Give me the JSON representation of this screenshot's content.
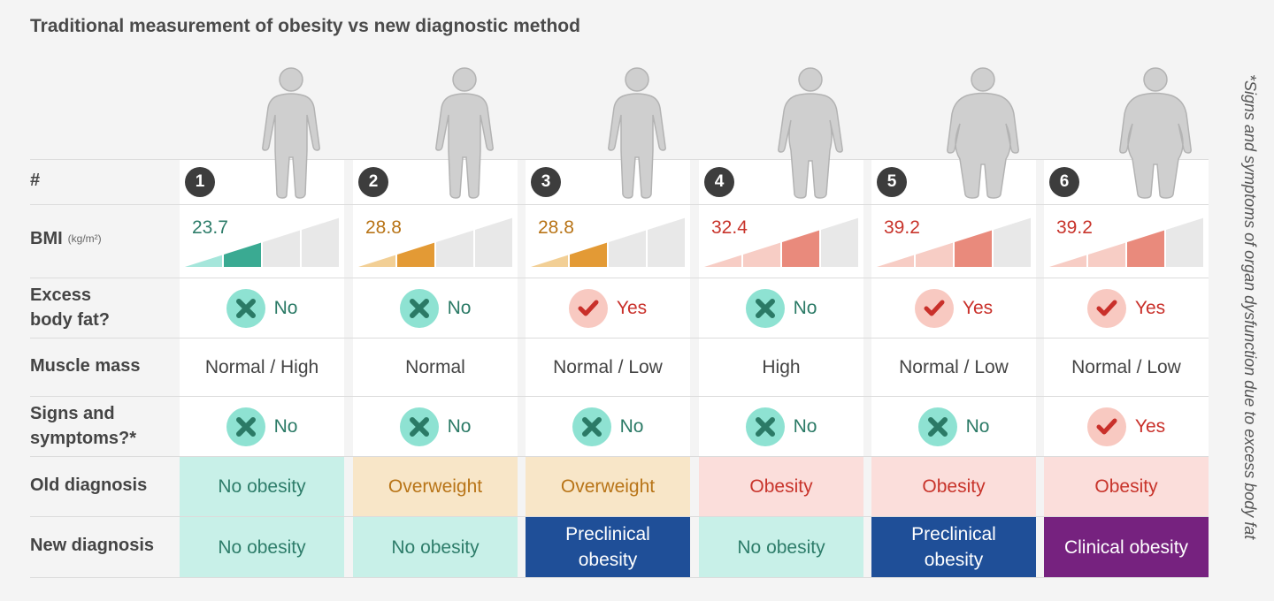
{
  "title": "Traditional measurement of obesity vs new diagnostic method",
  "side_note": "*Signs and symptoms of organ dysfunction due to excess body fat",
  "row_labels": {
    "number": "#",
    "bmi": "BMI",
    "bmi_unit": "(kg/m²)",
    "excess_fat_line1": "Excess",
    "excess_fat_line2": "body fat?",
    "muscle_mass": "Muscle mass",
    "signs_line1": "Signs and",
    "signs_line2": "symptoms?*",
    "old_diagnosis": "Old diagnosis",
    "new_diagnosis": "New diagnosis"
  },
  "colors": {
    "teal_dark": "#3aaa92",
    "teal_light": "#a5e6db",
    "teal_bg": "#c8f0e8",
    "teal_text": "#2e7d6a",
    "orange_dark": "#e39a35",
    "orange_light": "#f2cf95",
    "orange_bg": "#f8e6c8",
    "orange_text": "#b87417",
    "red_dark": "#e98a7c",
    "red_light": "#f7cdc5",
    "red_bg": "#fbdedb",
    "red_text": "#c8342b",
    "navy": "#1f4f98",
    "purple": "#76227f",
    "gray_seg": "#e8e8e8",
    "x_circle": "#8ee2d2",
    "x_mark": "#2b7a66",
    "check_circle": "#f8c9c1",
    "check_mark": "#c9302a"
  },
  "chart_data": {
    "type": "table",
    "title": "Traditional measurement of obesity vs new diagnostic method",
    "columns": [
      "1",
      "2",
      "3",
      "4",
      "5",
      "6"
    ],
    "people": [
      {
        "number": "1",
        "bmi": 23.7,
        "bmi_text": "23.7",
        "bmi_level": 2,
        "bmi_color": "teal",
        "body": "slim",
        "excess_fat": "No",
        "muscle_mass": "Normal / High",
        "signs": "No",
        "old_diagnosis": "No obesity",
        "old_style": "teal",
        "new_diagnosis": "No obesity",
        "new_style": "teal"
      },
      {
        "number": "2",
        "bmi": 28.8,
        "bmi_text": "28.8",
        "bmi_level": 2,
        "bmi_color": "orange",
        "body": "slim",
        "excess_fat": "No",
        "muscle_mass": "Normal",
        "signs": "No",
        "old_diagnosis": "Overweight",
        "old_style": "orange",
        "new_diagnosis": "No obesity",
        "new_style": "teal"
      },
      {
        "number": "3",
        "bmi": 28.8,
        "bmi_text": "28.8",
        "bmi_level": 2,
        "bmi_color": "orange",
        "body": "slim",
        "excess_fat": "Yes",
        "muscle_mass": "Normal / Low",
        "signs": "No",
        "old_diagnosis": "Overweight",
        "old_style": "orange",
        "new_diagnosis": "Preclinical obesity",
        "new_line1": "Preclinical",
        "new_line2": "obesity",
        "new_style": "navy"
      },
      {
        "number": "4",
        "bmi": 32.4,
        "bmi_text": "32.4",
        "bmi_level": 3,
        "bmi_color": "red",
        "body": "medium",
        "excess_fat": "No",
        "muscle_mass": "High",
        "signs": "No",
        "old_diagnosis": "Obesity",
        "old_style": "red",
        "new_diagnosis": "No obesity",
        "new_style": "teal"
      },
      {
        "number": "5",
        "bmi": 39.2,
        "bmi_text": "39.2",
        "bmi_level": 3,
        "bmi_color": "red",
        "body": "large",
        "excess_fat": "Yes",
        "muscle_mass": "Normal / Low",
        "signs": "No",
        "old_diagnosis": "Obesity",
        "old_style": "red",
        "new_diagnosis": "Preclinical obesity",
        "new_line1": "Preclinical",
        "new_line2": "obesity",
        "new_style": "navy"
      },
      {
        "number": "6",
        "bmi": 39.2,
        "bmi_text": "39.2",
        "bmi_level": 3,
        "bmi_color": "red",
        "body": "large",
        "excess_fat": "Yes",
        "muscle_mass": "Normal / Low",
        "signs": "Yes",
        "old_diagnosis": "Obesity",
        "old_style": "red",
        "new_diagnosis": "Clinical obesity",
        "new_style": "purple"
      }
    ]
  }
}
